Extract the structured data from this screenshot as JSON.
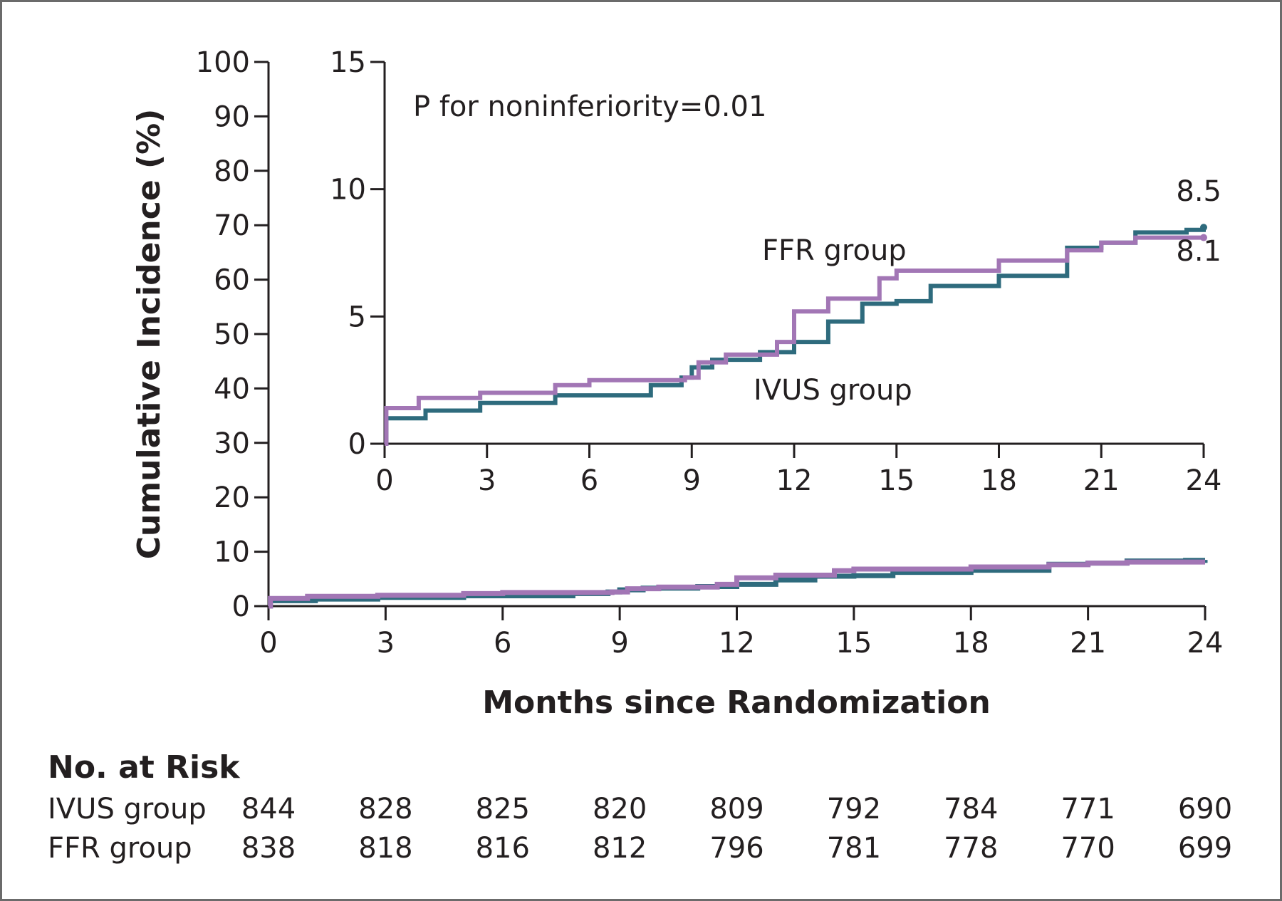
{
  "chart_data": [
    {
      "type": "line",
      "panel": "main",
      "xlabel": "Months since Randomization",
      "ylabel": "Cumulative Incidence (%)",
      "xlim": [
        0,
        24
      ],
      "ylim": [
        0,
        100
      ],
      "xticks": [
        0,
        3,
        6,
        9,
        12,
        15,
        18,
        21,
        24
      ],
      "yticks": [
        0,
        10,
        20,
        30,
        40,
        50,
        60,
        70,
        80,
        90,
        100
      ],
      "series": [
        {
          "key": "ivus",
          "color": "#2e6b7d",
          "x": [
            0,
            0.05,
            1.2,
            2.8,
            5.0,
            7.8,
            8.7,
            9.0,
            9.6,
            11.0,
            12.0,
            13.0,
            14.0,
            15.0,
            16.0,
            18.0,
            20.0,
            21.0,
            22.0,
            23.5,
            24.0
          ],
          "y": [
            0,
            1.0,
            1.3,
            1.6,
            1.9,
            2.3,
            2.6,
            3.0,
            3.3,
            3.6,
            4.0,
            4.8,
            5.5,
            5.6,
            6.2,
            6.6,
            7.7,
            7.9,
            8.3,
            8.4,
            8.5
          ]
        },
        {
          "key": "ffr",
          "color": "#a276b5",
          "x": [
            0,
            0.05,
            1.0,
            2.8,
            5.0,
            6.0,
            8.8,
            9.2,
            10.0,
            11.5,
            12.0,
            13.0,
            14.5,
            15.0,
            17.0,
            18.0,
            20.0,
            21.0,
            22.0,
            24.0
          ],
          "y": [
            0,
            1.4,
            1.8,
            2.0,
            2.3,
            2.5,
            2.6,
            3.2,
            3.5,
            4.0,
            5.2,
            5.7,
            6.5,
            6.8,
            6.8,
            7.2,
            7.6,
            7.9,
            8.1,
            8.1
          ]
        }
      ]
    },
    {
      "type": "line",
      "panel": "inset",
      "xlim": [
        0,
        24
      ],
      "ylim": [
        0,
        15
      ],
      "xticks": [
        0,
        3,
        6,
        9,
        12,
        15,
        18,
        21,
        24
      ],
      "yticks": [
        0,
        5,
        10,
        15
      ],
      "annotation": "P for noninferiority=0.01",
      "labels": {
        "ffr_group": "FFR group",
        "ivus_group": "IVUS group"
      },
      "end_values": {
        "ivus": "8.5",
        "ffr": "8.1"
      },
      "series": [
        {
          "key": "ivus",
          "color": "#2e6b7d",
          "x": [
            0,
            0.05,
            1.2,
            2.8,
            5.0,
            7.8,
            8.7,
            9.0,
            9.6,
            11.0,
            12.0,
            13.0,
            14.0,
            15.0,
            16.0,
            18.0,
            20.0,
            21.0,
            22.0,
            23.5,
            24.0
          ],
          "y": [
            0,
            1.0,
            1.3,
            1.6,
            1.9,
            2.3,
            2.6,
            3.0,
            3.3,
            3.6,
            4.0,
            4.8,
            5.5,
            5.6,
            6.2,
            6.6,
            7.7,
            7.9,
            8.3,
            8.4,
            8.5
          ]
        },
        {
          "key": "ffr",
          "color": "#a276b5",
          "x": [
            0,
            0.05,
            1.0,
            2.8,
            5.0,
            6.0,
            8.8,
            9.2,
            10.0,
            11.5,
            12.0,
            13.0,
            14.5,
            15.0,
            17.0,
            18.0,
            20.0,
            21.0,
            22.0,
            24.0
          ],
          "y": [
            0,
            1.4,
            1.8,
            2.0,
            2.3,
            2.5,
            2.6,
            3.2,
            3.5,
            4.0,
            5.2,
            5.7,
            6.5,
            6.8,
            6.8,
            7.2,
            7.6,
            7.9,
            8.1,
            8.1
          ]
        }
      ]
    },
    {
      "type": "table",
      "panel": "number-at-risk",
      "title": "No. at Risk",
      "months": [
        0,
        3,
        6,
        9,
        12,
        15,
        18,
        21,
        24
      ],
      "rows": [
        {
          "label": "IVUS group",
          "values": [
            "844",
            "828",
            "825",
            "820",
            "809",
            "792",
            "784",
            "771",
            "690"
          ]
        },
        {
          "label": "FFR group",
          "values": [
            "838",
            "818",
            "816",
            "812",
            "796",
            "781",
            "778",
            "770",
            "699"
          ]
        }
      ]
    }
  ]
}
